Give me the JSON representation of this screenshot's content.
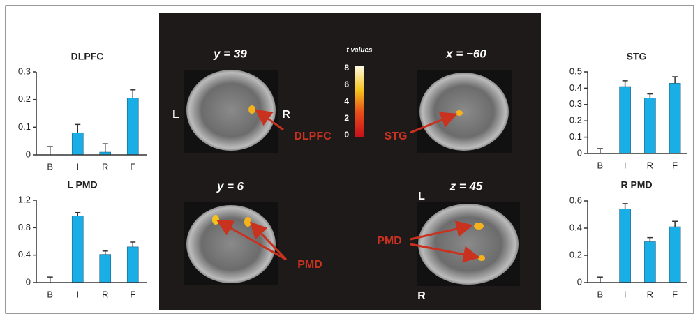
{
  "chart_data": [
    {
      "type": "bar",
      "title": "DLPFC",
      "categories": [
        "B",
        "I",
        "R",
        "F"
      ],
      "values": [
        0,
        0.08,
        0.01,
        0.205
      ],
      "errors": [
        0.03,
        0.03,
        0.03,
        0.03
      ],
      "color": "#19aee6",
      "ylim": [
        0,
        0.3
      ],
      "yticks": [
        0,
        0.1,
        0.2,
        0.3
      ]
    },
    {
      "type": "bar",
      "title": "L PMD",
      "categories": [
        "B",
        "I",
        "R",
        "F"
      ],
      "values": [
        0,
        0.97,
        0.41,
        0.52
      ],
      "errors": [
        0.08,
        0.05,
        0.05,
        0.07
      ],
      "color": "#19aee6",
      "ylim": [
        0,
        1.2
      ],
      "yticks": [
        0,
        0.4,
        0.8,
        1.2
      ]
    },
    {
      "type": "bar",
      "title": "STG",
      "categories": [
        "B",
        "I",
        "R",
        "F"
      ],
      "values": [
        0,
        0.41,
        0.34,
        0.43
      ],
      "errors": [
        0.03,
        0.035,
        0.025,
        0.04
      ],
      "color": "#19aee6",
      "ylim": [
        0,
        0.5
      ],
      "yticks": [
        0,
        0.1,
        0.2,
        0.3,
        0.4,
        0.5
      ]
    },
    {
      "type": "bar",
      "title": "R PMD",
      "categories": [
        "B",
        "I",
        "R",
        "F"
      ],
      "values": [
        0,
        0.54,
        0.3,
        0.41
      ],
      "errors": [
        0.04,
        0.04,
        0.03,
        0.04
      ],
      "color": "#19aee6",
      "ylim": [
        0,
        0.6
      ],
      "yticks": [
        0,
        0.2,
        0.4,
        0.6
      ]
    }
  ],
  "images": {
    "titles": [
      "y = 39",
      "x = −60",
      "y = 6",
      "z = 45"
    ],
    "orientation_labels": [
      "L",
      "R",
      "L",
      "R"
    ],
    "region_labels": [
      "DLPFC",
      "STG",
      "PMD",
      "PMD"
    ]
  },
  "colorbar": {
    "title": "t values",
    "lim": [
      0,
      8
    ],
    "ticks": [
      8,
      6,
      4,
      2,
      0
    ]
  }
}
